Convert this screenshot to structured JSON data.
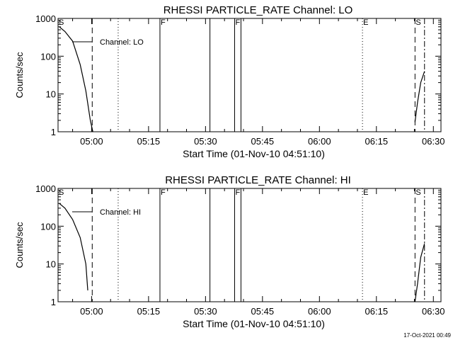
{
  "chart_data": [
    {
      "type": "line",
      "title": "RHESSI PARTICLE_RATE Channel: LO",
      "ylabel": "Counts/sec",
      "xlabel": "Start Time (01-Nov-10 04:51:10)",
      "y_scale": "log",
      "ylim": [
        1,
        1000
      ],
      "xlim": [
        "04:51:10",
        "06:32:00"
      ],
      "yticks": [
        "1",
        "10",
        "100",
        "1000"
      ],
      "xticks": [
        "05:00",
        "05:15",
        "05:30",
        "05:45",
        "06:00",
        "06:15",
        "06:30"
      ],
      "legend": "Channel: LO",
      "series": [
        {
          "name": "Channel: LO",
          "segments": [
            [
              [
                "04:51:30",
                600
              ],
              [
                "04:53:00",
                450
              ],
              [
                "04:55:00",
                250
              ],
              [
                "04:57:00",
                60
              ],
              [
                "04:58:30",
                12
              ],
              [
                "04:59:40",
                2
              ],
              [
                "05:00:20",
                1
              ]
            ],
            [
              [
                "06:25:10",
                1.8
              ],
              [
                "06:25:50",
                6
              ],
              [
                "06:26:40",
                20
              ],
              [
                "06:27:40",
                40
              ]
            ]
          ]
        }
      ],
      "event_lines": [
        {
          "label": "S",
          "time": "04:51:10",
          "style": "solid"
        },
        {
          "label": "",
          "time": "05:00:10",
          "style": "dashed"
        },
        {
          "label": "",
          "time": "05:07:00",
          "style": "dotted"
        },
        {
          "label": "F",
          "time": "05:18:00",
          "style": "solid"
        },
        {
          "label": "",
          "time": "05:31:10",
          "style": "solid"
        },
        {
          "label": "F",
          "time": "05:37:40",
          "style": "solid"
        },
        {
          "label": "",
          "time": "05:39:20",
          "style": "solid"
        },
        {
          "label": "E",
          "time": "06:11:20",
          "style": "dotted"
        },
        {
          "label": "S",
          "time": "06:25:10",
          "style": "dashed"
        },
        {
          "label": "",
          "time": "06:27:40",
          "style": "dashdot"
        }
      ]
    },
    {
      "type": "line",
      "title": "RHESSI PARTICLE_RATE Channel: HI",
      "ylabel": "Counts/sec",
      "xlabel": "Start Time (01-Nov-10 04:51:10)",
      "y_scale": "log",
      "ylim": [
        1,
        1000
      ],
      "xlim": [
        "04:51:10",
        "06:32:00"
      ],
      "yticks": [
        "1",
        "10",
        "100",
        "1000"
      ],
      "xticks": [
        "05:00",
        "05:15",
        "05:30",
        "05:45",
        "06:00",
        "06:15",
        "06:30"
      ],
      "legend": "Channel: HI",
      "series": [
        {
          "name": "Channel: HI",
          "segments": [
            [
              [
                "04:51:30",
                400
              ],
              [
                "04:53:00",
                300
              ],
              [
                "04:55:00",
                150
              ],
              [
                "04:57:00",
                50
              ],
              [
                "04:58:30",
                10
              ],
              [
                "04:59:00",
                2
              ]
            ],
            [
              [
                "06:25:10",
                1
              ],
              [
                "06:25:50",
                3
              ],
              [
                "06:26:40",
                15
              ],
              [
                "06:27:40",
                35
              ]
            ]
          ]
        }
      ],
      "event_lines": [
        {
          "label": "S",
          "time": "04:51:10",
          "style": "solid"
        },
        {
          "label": "",
          "time": "05:00:10",
          "style": "dashed"
        },
        {
          "label": "",
          "time": "05:07:00",
          "style": "dotted"
        },
        {
          "label": "F",
          "time": "05:18:00",
          "style": "solid"
        },
        {
          "label": "",
          "time": "05:31:10",
          "style": "solid"
        },
        {
          "label": "F",
          "time": "05:37:40",
          "style": "solid"
        },
        {
          "label": "",
          "time": "05:39:20",
          "style": "solid"
        },
        {
          "label": "E",
          "time": "06:11:20",
          "style": "dotted"
        },
        {
          "label": "S",
          "time": "06:25:10",
          "style": "dashed"
        },
        {
          "label": "",
          "time": "06:27:40",
          "style": "dashdot"
        }
      ]
    }
  ],
  "footer": {
    "timestamp": "17-Oct-2021 00:49"
  }
}
